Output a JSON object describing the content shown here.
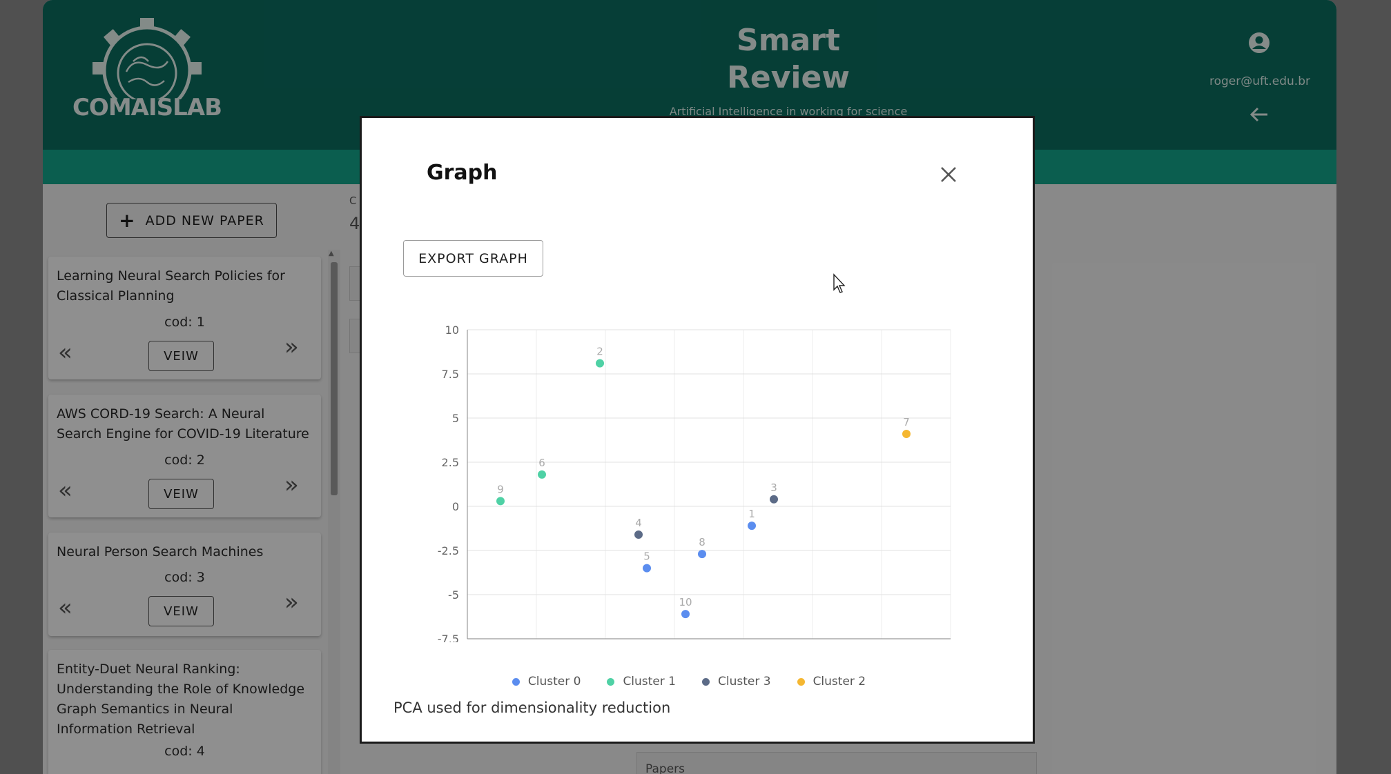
{
  "header": {
    "logo_text": "COMAISLAB",
    "title_line1": "Smart",
    "title_line2": "Review",
    "tagline": "Artificial Intelligence in working for science",
    "user_email": "roger@uft.edu.br"
  },
  "sidebar": {
    "add_button_label": "ADD NEW PAPER",
    "view_label": "VEIW",
    "papers": [
      {
        "title": "Learning Neural Search Policies for Classical Planning",
        "cod": "cod: 1"
      },
      {
        "title": "AWS CORD-19 Search: A Neural Search Engine for COVID-19 Literature",
        "cod": "cod: 2"
      },
      {
        "title": "Neural Person Search Machines",
        "cod": "cod: 3"
      },
      {
        "title": "Entity-Duet Neural Ranking: Understanding the Role of Knowledge Graph Semantics in Neural Information Retrieval",
        "cod": "cod: 4"
      }
    ]
  },
  "background": {
    "frag_c": "C",
    "frag_4": "4",
    "papers_label": "Papers"
  },
  "modal": {
    "title": "Graph",
    "export_label": "EXPORT GRAPH",
    "caption": "PCA used for dimensionality reduction"
  },
  "colors": {
    "cluster0": "#5b8def",
    "cluster1": "#4fd1a5",
    "cluster3": "#5c6b87",
    "cluster2": "#f5b731",
    "header": "#0b6b5e",
    "subbar": "#13a389"
  },
  "chart_data": {
    "type": "scatter",
    "xlim": [
      -7.5,
      10
    ],
    "ylim": [
      -7.5,
      10
    ],
    "x_ticks": [
      "-7.5",
      "-5",
      "-2.5",
      "0",
      "2.5",
      "5",
      "7.5",
      "10"
    ],
    "y_ticks": [
      "10",
      "7.5",
      "5",
      "2.5",
      "0",
      "-2.5",
      "-5",
      "-7.5"
    ],
    "grid": true,
    "legend_position": "bottom",
    "series": [
      {
        "name": "Cluster 0",
        "color": "#5b8def",
        "points": [
          {
            "label": "1",
            "x": 2.8,
            "y": -1.1
          },
          {
            "label": "5",
            "x": -1.0,
            "y": -3.5
          },
          {
            "label": "8",
            "x": 1.0,
            "y": -2.7
          },
          {
            "label": "10",
            "x": 0.4,
            "y": -6.1
          }
        ]
      },
      {
        "name": "Cluster 1",
        "color": "#4fd1a5",
        "points": [
          {
            "label": "2",
            "x": -2.7,
            "y": 8.1
          },
          {
            "label": "6",
            "x": -4.8,
            "y": 1.8
          },
          {
            "label": "9",
            "x": -6.3,
            "y": 0.3
          }
        ]
      },
      {
        "name": "Cluster 3",
        "color": "#5c6b87",
        "points": [
          {
            "label": "3",
            "x": 3.6,
            "y": 0.4
          },
          {
            "label": "4",
            "x": -1.3,
            "y": -1.6
          }
        ]
      },
      {
        "name": "Cluster 2",
        "color": "#f5b731",
        "points": [
          {
            "label": "7",
            "x": 8.4,
            "y": 4.1
          }
        ]
      }
    ]
  }
}
